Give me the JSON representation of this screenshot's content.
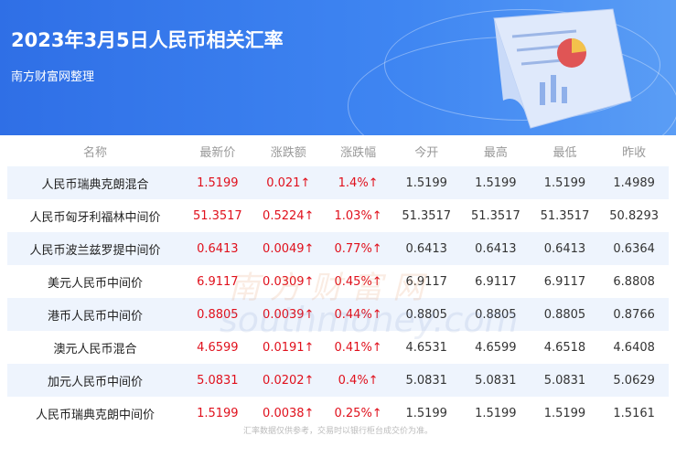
{
  "header": {
    "title": "2023年3月5日人民币相关汇率",
    "subtitle": "南方财富网整理"
  },
  "table": {
    "columns": [
      "名称",
      "最新价",
      "涨跌额",
      "涨跌幅",
      "今开",
      "最高",
      "最低",
      "昨收"
    ],
    "rows": [
      [
        "人民币瑞典克朗混合",
        "1.5199",
        "0.021↑",
        "1.4%↑",
        "1.5199",
        "1.5199",
        "1.5199",
        "1.4989"
      ],
      [
        "人民币匈牙利福林中间价",
        "51.3517",
        "0.5224↑",
        "1.03%↑",
        "51.3517",
        "51.3517",
        "51.3517",
        "50.8293"
      ],
      [
        "人民币波兰兹罗提中间价",
        "0.6413",
        "0.0049↑",
        "0.77%↑",
        "0.6413",
        "0.6413",
        "0.6413",
        "0.6364"
      ],
      [
        "美元人民币中间价",
        "6.9117",
        "0.0309↑",
        "0.45%↑",
        "6.9117",
        "6.9117",
        "6.9117",
        "6.8808"
      ],
      [
        "港币人民币中间价",
        "0.8805",
        "0.0039↑",
        "0.44%↑",
        "0.8805",
        "0.8805",
        "0.8805",
        "0.8766"
      ],
      [
        "澳元人民币混合",
        "4.6599",
        "0.0191↑",
        "0.41%↑",
        "4.6531",
        "4.6599",
        "4.6518",
        "4.6408"
      ],
      [
        "加元人民币中间价",
        "5.0831",
        "0.0202↑",
        "0.4%↑",
        "5.0831",
        "5.0831",
        "5.0831",
        "5.0629"
      ],
      [
        "人民币瑞典克朗中间价",
        "1.5199",
        "0.0038↑",
        "0.25%↑",
        "1.5199",
        "1.5199",
        "1.5199",
        "1.5161"
      ]
    ]
  },
  "footer": "汇率数据仅供参考，交易时以银行柜台成交价为准。",
  "watermark": {
    "cn": "南方财富网",
    "en": "southmoney.com"
  },
  "colors": {
    "up": "#e0101c",
    "header_bg": "#3f86f2",
    "row_alt": "#eef4fd"
  }
}
